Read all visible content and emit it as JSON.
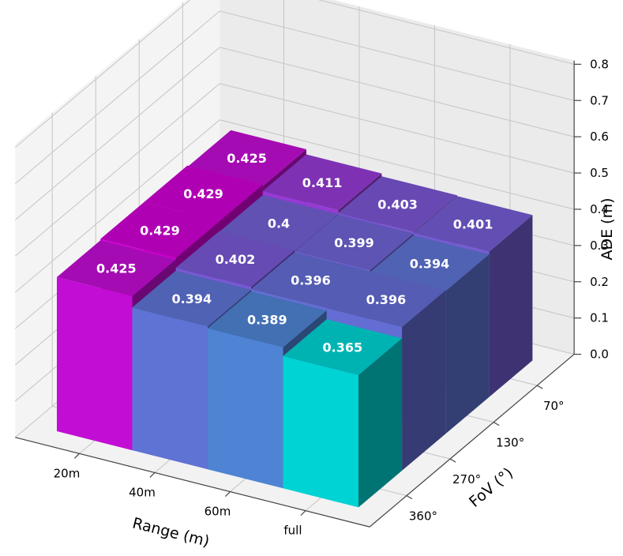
{
  "chart_data": {
    "type": "bar3d",
    "xlabel": "Range (m)",
    "ylabel": "FoV (°)",
    "zlabel": "ADE (m)",
    "range_categories": [
      "20m",
      "40m",
      "60m",
      "full"
    ],
    "fov_categories": [
      "360°",
      "270°",
      "130°",
      "70°"
    ],
    "zlim": [
      0.0,
      0.8
    ],
    "z_ticks": [
      "0.0",
      "0.1",
      "0.2",
      "0.3",
      "0.4",
      "0.5",
      "0.6",
      "0.7",
      "0.8"
    ],
    "grid": true,
    "colormap": {
      "low": "#00e5e5",
      "high": "#e100e6"
    },
    "values": [
      {
        "range": "20m",
        "fov": "360°",
        "value": 0.425,
        "label": "0.425"
      },
      {
        "range": "20m",
        "fov": "270°",
        "value": 0.429,
        "label": "0.429"
      },
      {
        "range": "20m",
        "fov": "130°",
        "value": 0.429,
        "label": "0.429"
      },
      {
        "range": "20m",
        "fov": "70°",
        "value": 0.425,
        "label": "0.425"
      },
      {
        "range": "40m",
        "fov": "360°",
        "value": 0.394,
        "label": "0.394"
      },
      {
        "range": "40m",
        "fov": "270°",
        "value": 0.402,
        "label": "0.402"
      },
      {
        "range": "40m",
        "fov": "130°",
        "value": 0.4,
        "label": "0.4"
      },
      {
        "range": "40m",
        "fov": "70°",
        "value": 0.411,
        "label": "0.411"
      },
      {
        "range": "60m",
        "fov": "360°",
        "value": 0.389,
        "label": "0.389"
      },
      {
        "range": "60m",
        "fov": "270°",
        "value": 0.396,
        "label": "0.396"
      },
      {
        "range": "60m",
        "fov": "130°",
        "value": 0.399,
        "label": "0.399"
      },
      {
        "range": "60m",
        "fov": "70°",
        "value": 0.403,
        "label": "0.403"
      },
      {
        "range": "full",
        "fov": "360°",
        "value": 0.365,
        "label": "0.365"
      },
      {
        "range": "full",
        "fov": "270°",
        "value": 0.396,
        "label": "0.396"
      },
      {
        "range": "full",
        "fov": "130°",
        "value": 0.394,
        "label": "0.394"
      },
      {
        "range": "full",
        "fov": "70°",
        "value": 0.401,
        "label": "0.401"
      }
    ]
  }
}
